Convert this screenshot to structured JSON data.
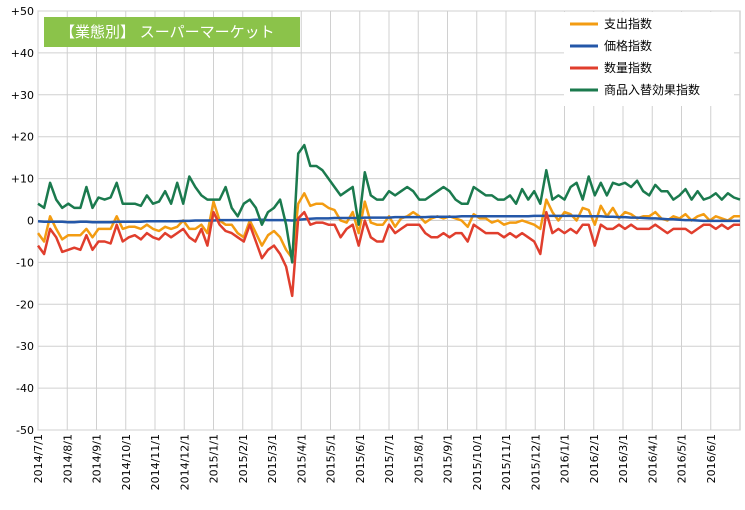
{
  "chart_data": {
    "type": "line",
    "title": "【業態別】 スーパーマーケット",
    "title_box_color": "#8bc34a",
    "ylim": [
      -50,
      50
    ],
    "y_ticks": [
      "+50",
      "+40",
      "+30",
      "+20",
      "+10",
      "0",
      "-10",
      "-20",
      "-30",
      "-40",
      "-50"
    ],
    "y_tick_values": [
      50,
      40,
      30,
      20,
      10,
      0,
      -10,
      -20,
      -30,
      -40,
      -50
    ],
    "x_tick_labels": [
      "2014/7/1",
      "2014/8/1",
      "2014/9/1",
      "2014/10/1",
      "2014/11/1",
      "2014/12/1",
      "2015/1/1",
      "2015/2/1",
      "2015/3/1",
      "2015/4/1",
      "2015/5/1",
      "2015/6/1",
      "2015/7/1",
      "2015/8/1",
      "2015/9/1",
      "2015/10/1",
      "2015/11/1",
      "2015/12/1",
      "2016/1/1",
      "2016/2/1",
      "2016/3/1",
      "2016/4/1",
      "2016/5/1",
      "2016/6/1"
    ],
    "grid": true,
    "legend_placement": "top-right",
    "series": [
      {
        "name": "支出指数",
        "color": "#f39c12",
        "values": [
          -3,
          -5,
          1,
          -2,
          -4.5,
          -3.5,
          -3.5,
          -3.5,
          -2,
          -4,
          -2,
          -2,
          -2,
          1,
          -2,
          -1.5,
          -1.5,
          -2,
          -1,
          -2,
          -2.5,
          -1.5,
          -2,
          -1.5,
          0,
          -2,
          -2,
          -1,
          -3,
          4.5,
          0,
          -1,
          -1,
          -3,
          -4,
          0,
          -3,
          -6,
          -3.5,
          -2.5,
          -4,
          -7,
          -9,
          4,
          6.5,
          3.5,
          4,
          4,
          3,
          2.5,
          0,
          -0.5,
          2,
          -3,
          4.5,
          -0.5,
          -1,
          -1,
          1,
          -1.5,
          0.5,
          1,
          2,
          1,
          -0.5,
          0.5,
          1,
          0.5,
          1,
          0.5,
          0,
          -1.5,
          1.5,
          0.5,
          0.5,
          -0.5,
          0,
          -1,
          -0.5,
          -0.5,
          0,
          -0.5,
          -1,
          -2,
          5,
          2,
          0,
          2,
          1.5,
          0,
          3,
          2.5,
          -1,
          3.5,
          1,
          3,
          0.5,
          2,
          1.5,
          0.5,
          1,
          1,
          2,
          0.5,
          0,
          1,
          0.5,
          1.5,
          0,
          1,
          1.5,
          0,
          1,
          0.5,
          0,
          1,
          1
        ]
      },
      {
        "name": "価格指数",
        "color": "#2457a8",
        "values": [
          -0.2,
          -0.3,
          -0.3,
          -0.3,
          -0.3,
          -0.4,
          -0.4,
          -0.3,
          -0.3,
          -0.4,
          -0.4,
          -0.4,
          -0.4,
          -0.3,
          -0.3,
          -0.3,
          -0.3,
          -0.3,
          -0.2,
          -0.2,
          -0.2,
          -0.2,
          -0.2,
          -0.2,
          -0.1,
          -0.1,
          0,
          0,
          0,
          0,
          0.1,
          0.1,
          0.1,
          0.1,
          0.1,
          0.1,
          0.2,
          0.2,
          0.1,
          0.1,
          0.1,
          0.1,
          0,
          0.2,
          0.3,
          0.4,
          0.5,
          0.5,
          0.5,
          0.6,
          0.6,
          0.6,
          0.6,
          0.6,
          0.7,
          0.7,
          0.7,
          0.7,
          0.7,
          0.8,
          0.8,
          0.8,
          0.8,
          0.8,
          0.8,
          0.9,
          0.9,
          0.9,
          0.9,
          0.9,
          1,
          1,
          1,
          1,
          1,
          1,
          1,
          1,
          1,
          1,
          1,
          1,
          1.1,
          1.1,
          1.1,
          1.1,
          1.1,
          1.1,
          1.1,
          1.1,
          1,
          1,
          1,
          1,
          0.9,
          0.9,
          0.8,
          0.8,
          0.7,
          0.7,
          0.6,
          0.5,
          0.5,
          0.4,
          0.3,
          0.3,
          0.2,
          0.1,
          0.1,
          0,
          -0.1,
          -0.1,
          -0.1,
          -0.1,
          -0.1,
          -0.1,
          -0.1
        ]
      },
      {
        "name": "数量指数",
        "color": "#e03e2d",
        "values": [
          -6,
          -8,
          -2,
          -4,
          -7.5,
          -7,
          -6.5,
          -7,
          -3.5,
          -7,
          -5,
          -5,
          -5.5,
          -1,
          -5,
          -4,
          -3.5,
          -4.5,
          -3,
          -4,
          -4.5,
          -3,
          -4,
          -3,
          -2,
          -4,
          -5,
          -2,
          -6,
          2,
          -1,
          -2.5,
          -3,
          -4,
          -5,
          -1,
          -5,
          -9,
          -7,
          -6,
          -8,
          -11,
          -18,
          0.5,
          2,
          -1,
          -0.5,
          -0.5,
          -1,
          -1,
          -4,
          -2,
          -1,
          -6,
          0,
          -4,
          -5,
          -5,
          -1,
          -3,
          -2,
          -1,
          -1,
          -1,
          -3,
          -4,
          -4,
          -3,
          -4,
          -3,
          -3,
          -5,
          -1,
          -2,
          -3,
          -3,
          -3,
          -4,
          -3,
          -4,
          -3,
          -4,
          -5,
          -8,
          2,
          -3,
          -2,
          -3,
          -2,
          -3,
          -1,
          -1,
          -6,
          -1,
          -2,
          -2,
          -1,
          -2,
          -1,
          -2,
          -2,
          -2,
          -1,
          -2,
          -3,
          -2,
          -2,
          -2,
          -3,
          -2,
          -1,
          -1,
          -2,
          -1,
          -2,
          -1,
          -1
        ]
      },
      {
        "name": "商品入替効果指数",
        "color": "#1b7a4e",
        "values": [
          4,
          3,
          9,
          5,
          3,
          4,
          3,
          3,
          8,
          3,
          5.5,
          5,
          5.5,
          9,
          4,
          4,
          4,
          3.5,
          6,
          4,
          4.5,
          7,
          4,
          9,
          4,
          10.5,
          8,
          6,
          5,
          5,
          5,
          8,
          3,
          1,
          4,
          5,
          3,
          -1,
          2,
          3,
          5,
          -1,
          -10,
          16,
          18,
          13,
          13,
          12,
          10,
          8,
          6,
          7,
          8,
          -1,
          11.5,
          6,
          5,
          5,
          7,
          6,
          7,
          8,
          7,
          5,
          5,
          6,
          7,
          8,
          7,
          5,
          4,
          4,
          8,
          7,
          6,
          6,
          5,
          5,
          6,
          4,
          7.5,
          5,
          7,
          4,
          12,
          5,
          6,
          5,
          8,
          9,
          5,
          10.5,
          6,
          9,
          6,
          9,
          8.5,
          9,
          8,
          9.5,
          7,
          6,
          8.5,
          7,
          7,
          5,
          6,
          7.5,
          5,
          7,
          5,
          5.5,
          6.5,
          5,
          6.5,
          5.5,
          5
        ]
      }
    ]
  }
}
